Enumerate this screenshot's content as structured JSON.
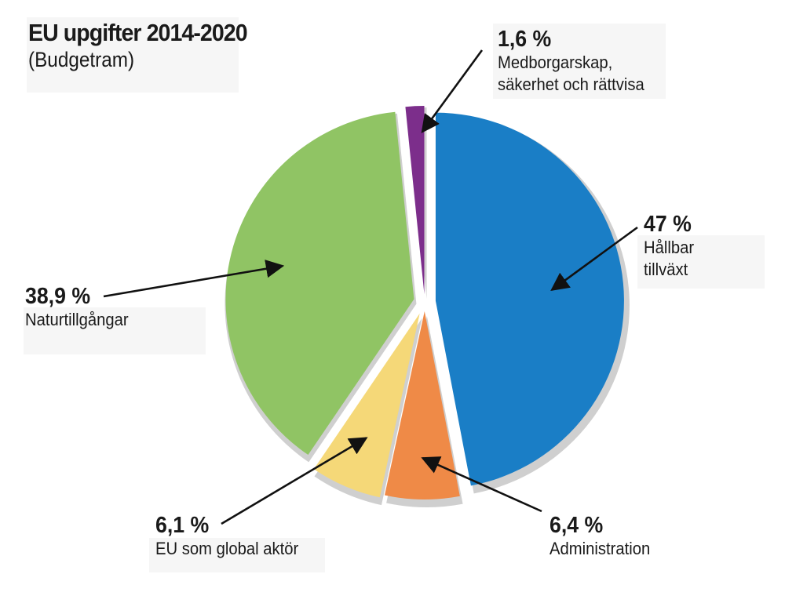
{
  "chart_data": {
    "type": "pie",
    "title": "EU upgifter 2014-2020",
    "subtitle": "(Budgetram)",
    "slices": [
      {
        "label": "Hållbar tillväxt",
        "lines": [
          "Hållbar",
          "tillväxt"
        ],
        "pct_label": "47 %",
        "value": 47.0,
        "color": "#1a7ec6"
      },
      {
        "label": "Administration",
        "lines": [
          "Administration"
        ],
        "pct_label": "6,4 %",
        "value": 6.4,
        "color": "#ef8a47"
      },
      {
        "label": "EU som global aktör",
        "lines": [
          "EU som global aktör"
        ],
        "pct_label": "6,1 %",
        "value": 6.1,
        "color": "#f5d878"
      },
      {
        "label": "Naturtillgångar",
        "lines": [
          "Naturtillgångar"
        ],
        "pct_label": "38,9 %",
        "value": 38.9,
        "color": "#90c464"
      },
      {
        "label": "Medborgarskap, säkerhet och rättvisa",
        "lines": [
          "Medborgarskap,",
          "säkerhet och rättvisa"
        ],
        "pct_label": "1,6 %",
        "value": 1.6,
        "color": "#7c2e8b"
      }
    ],
    "legend": "none"
  },
  "colors": {
    "arrow": "#111111",
    "shadow": "#cfcfcf",
    "text": "#1a1a1a"
  }
}
